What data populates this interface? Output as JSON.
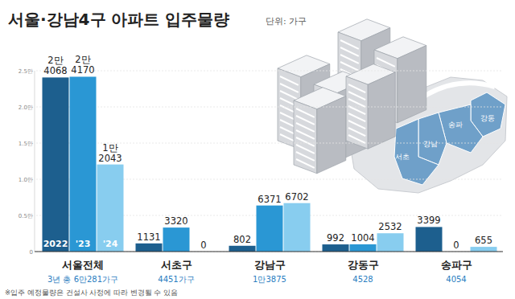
{
  "chart_data": {
    "type": "bar",
    "title": "서울·강남4구 아파트 입주물량",
    "subtitle": "단위: 가구",
    "categories": [
      "서울전체",
      "서초구",
      "강남구",
      "강동구",
      "송파구"
    ],
    "totals": [
      "3년 총 6만281가구",
      "4451가구",
      "1만3875",
      "4528",
      "4054"
    ],
    "series": [
      {
        "name": "2022",
        "color": "#1d5f8e",
        "values": [
          24068,
          1131,
          802,
          992,
          3399
        ],
        "value_labels": [
          "2만 4068",
          "1131",
          "802",
          "992",
          "3399"
        ]
      },
      {
        "name": "'23",
        "color": "#2a97d4",
        "values": [
          24170,
          3320,
          6371,
          1004,
          0
        ],
        "value_labels": [
          "2만 4170",
          "3320",
          "6371",
          "1004",
          "0"
        ]
      },
      {
        "name": "'24",
        "color": "#88cdef",
        "values": [
          12043,
          0,
          6702,
          2532,
          655
        ],
        "value_labels": [
          "1만 2043",
          "0",
          "6702",
          "2532",
          "655"
        ]
      }
    ],
    "ylim": [
      0,
      25000
    ],
    "yticks": [
      0,
      {
        "value": 5000,
        "label": "0.5만"
      },
      {
        "value": 10000,
        "label": "1.0만"
      },
      {
        "value": 15000,
        "label": "1.5만"
      },
      {
        "value": 20000,
        "label": "2.0만"
      },
      {
        "value": 25000,
        "label": "2.5만"
      }
    ],
    "grid": true,
    "data_labels": true,
    "map_labels": [
      "강동",
      "송파",
      "서초",
      "강남"
    ],
    "annotations": [
      "※입주 예정물량은 건설사 사정에 따라 변경될 수 있음"
    ]
  }
}
